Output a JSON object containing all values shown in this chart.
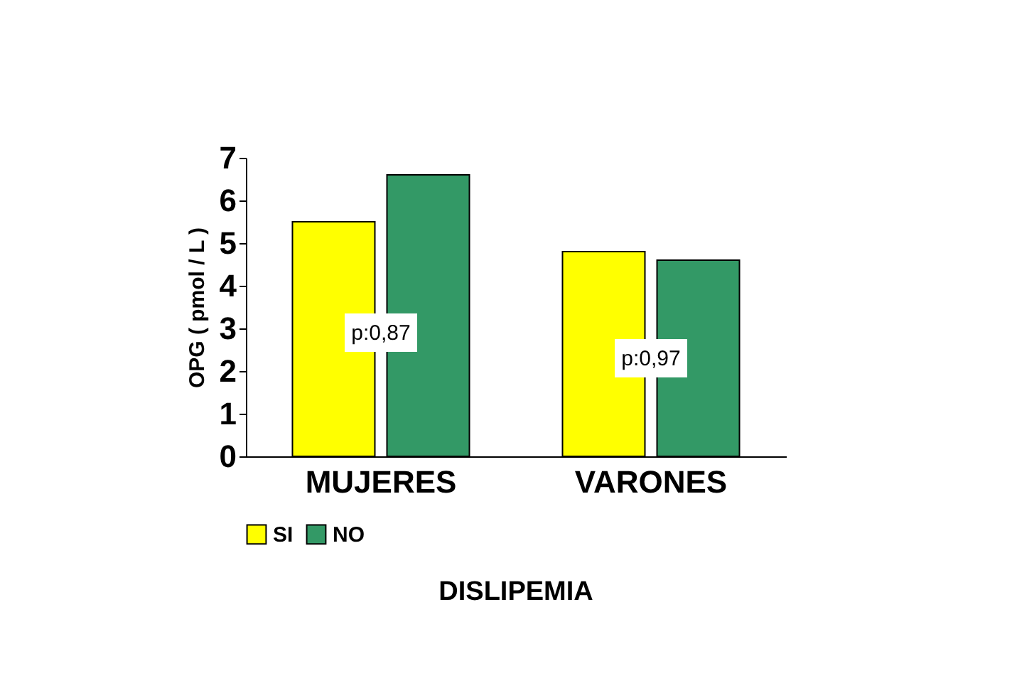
{
  "chart_data": {
    "type": "bar",
    "xlabel": "DISLIPEMIA",
    "ylabel": "OPG ( pmol / L )",
    "categories": [
      "MUJERES",
      "VARONES"
    ],
    "series": [
      {
        "name": "SI",
        "color": "#ffff00",
        "values": [
          5.5,
          4.8
        ]
      },
      {
        "name": "NO",
        "color": "#339966",
        "values": [
          6.6,
          4.6
        ]
      }
    ],
    "ylim": [
      0,
      7
    ],
    "yticks": [
      0,
      1,
      2,
      3,
      4,
      5,
      6,
      7
    ],
    "grid": false,
    "legend": "bottom",
    "annotations": [
      {
        "text": "p:0,87",
        "x": "MUJERES",
        "y": 2.9
      },
      {
        "text": "p:0,97",
        "x": "VARONES",
        "y": 2.3
      }
    ]
  }
}
